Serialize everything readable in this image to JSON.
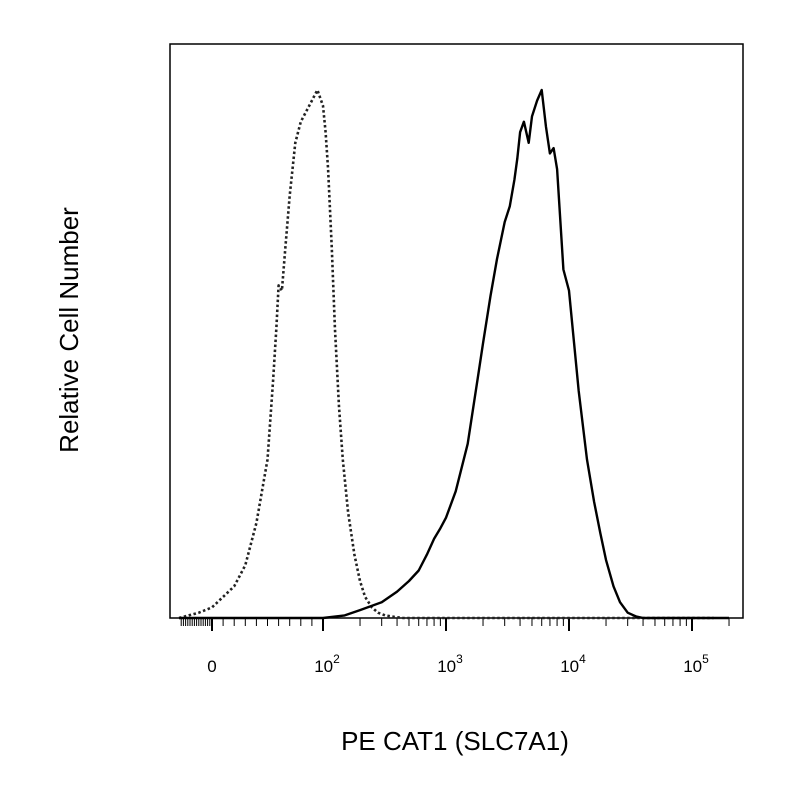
{
  "chart_data": {
    "type": "line",
    "title": "",
    "xlabel": "PE CAT1 (SLC7A1)",
    "ylabel": "Relative Cell Number",
    "x_scale": "biexponential",
    "xlim": [
      -200,
      200000
    ],
    "ylim": [
      0,
      1.0
    ],
    "grid": false,
    "legend": "none",
    "x_ticks": [
      {
        "value": 0,
        "base": "0",
        "exp": ""
      },
      {
        "value": 100,
        "base": "10",
        "exp": "2"
      },
      {
        "value": 1000,
        "base": "10",
        "exp": "3"
      },
      {
        "value": 10000,
        "base": "10",
        "exp": "4"
      },
      {
        "value": 100000,
        "base": "10",
        "exp": "5"
      }
    ],
    "series": [
      {
        "style": "dotted",
        "color": "#222222",
        "x": [
          -150,
          -60,
          0,
          20,
          30,
          40,
          50,
          55,
          58,
          60,
          63,
          66,
          70,
          75,
          80,
          85,
          90,
          95,
          100,
          105,
          110,
          118,
          125,
          135,
          145,
          160,
          180,
          200,
          220,
          250,
          280,
          320,
          380,
          450,
          600,
          1000,
          10000,
          150000
        ],
        "y": [
          0.0,
          0.01,
          0.02,
          0.06,
          0.1,
          0.18,
          0.3,
          0.45,
          0.55,
          0.63,
          0.62,
          0.7,
          0.8,
          0.9,
          0.94,
          0.96,
          0.98,
          1.0,
          0.97,
          0.92,
          0.85,
          0.7,
          0.55,
          0.4,
          0.3,
          0.2,
          0.12,
          0.07,
          0.04,
          0.02,
          0.01,
          0.005,
          0.002,
          0.0,
          0.0,
          0.0,
          0.0,
          0.0
        ]
      },
      {
        "style": "solid",
        "color": "#000000",
        "x": [
          -150,
          100,
          150,
          200,
          300,
          400,
          500,
          600,
          700,
          800,
          900,
          1000,
          1200,
          1500,
          1800,
          2000,
          2300,
          2600,
          3000,
          3300,
          3600,
          3800,
          4000,
          4300,
          4700,
          5000,
          5500,
          6000,
          6500,
          7000,
          7500,
          8000,
          9000,
          10000,
          11000,
          12000,
          14000,
          16000,
          18000,
          20000,
          23000,
          26000,
          30000,
          35000,
          40000,
          60000,
          200000
        ],
        "y": [
          0.0,
          0.0,
          0.005,
          0.015,
          0.03,
          0.05,
          0.07,
          0.09,
          0.12,
          0.15,
          0.17,
          0.19,
          0.24,
          0.33,
          0.45,
          0.52,
          0.61,
          0.68,
          0.75,
          0.78,
          0.83,
          0.87,
          0.92,
          0.94,
          0.9,
          0.95,
          0.98,
          1.0,
          0.93,
          0.88,
          0.89,
          0.85,
          0.66,
          0.62,
          0.52,
          0.43,
          0.3,
          0.22,
          0.16,
          0.11,
          0.06,
          0.03,
          0.01,
          0.003,
          0.0,
          0.0,
          0.0
        ]
      }
    ]
  }
}
